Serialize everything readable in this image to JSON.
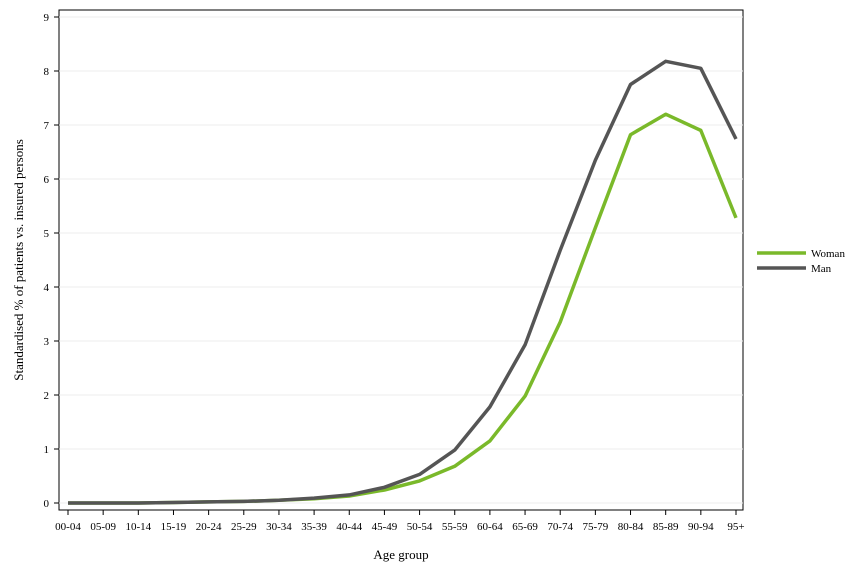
{
  "chart_data": {
    "type": "line",
    "title": "",
    "xlabel": "Age group",
    "ylabel": "Standardised % of patients vs. insured persons",
    "categories": [
      "00-04",
      "05-09",
      "10-14",
      "15-19",
      "20-24",
      "25-29",
      "30-34",
      "35-39",
      "40-44",
      "45-49",
      "50-54",
      "55-59",
      "60-64",
      "65-69",
      "70-74",
      "75-79",
      "80-84",
      "85-89",
      "90-94",
      "95+"
    ],
    "yticks": [
      0,
      1,
      2,
      3,
      4,
      5,
      6,
      7,
      8,
      9
    ],
    "ylim": [
      0,
      9
    ],
    "grid": "horizontal",
    "legend_position": "right",
    "series": [
      {
        "name": "Woman",
        "color": "#7ab92a",
        "values": [
          0.0,
          0.0,
          0.0,
          0.01,
          0.02,
          0.03,
          0.05,
          0.08,
          0.13,
          0.24,
          0.41,
          0.68,
          1.15,
          1.98,
          3.35,
          5.1,
          6.82,
          7.2,
          6.9,
          5.28
        ]
      },
      {
        "name": "Man",
        "color": "#555555",
        "values": [
          0.0,
          0.0,
          0.0,
          0.01,
          0.02,
          0.03,
          0.05,
          0.09,
          0.15,
          0.29,
          0.53,
          0.98,
          1.78,
          2.93,
          4.68,
          6.35,
          7.75,
          8.18,
          8.05,
          6.74
        ]
      }
    ]
  }
}
